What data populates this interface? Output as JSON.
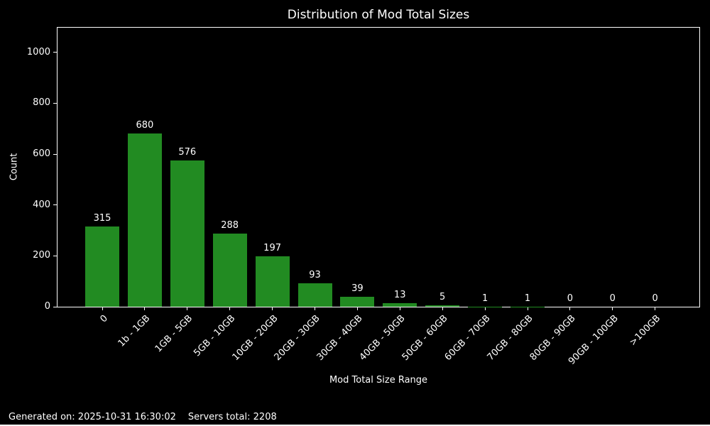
{
  "chart_data": {
    "type": "bar",
    "title": "Distribution of Mod Total Sizes",
    "xlabel": "Mod Total Size Range",
    "ylabel": "Count",
    "categories": [
      "0",
      "1b - 1GB",
      "1GB - 5GB",
      "5GB - 10GB",
      "10GB - 20GB",
      "20GB - 30GB",
      "30GB - 40GB",
      "40GB - 50GB",
      "50GB - 60GB",
      "60GB - 70GB",
      "70GB - 80GB",
      "80GB - 90GB",
      "90GB - 100GB",
      ">100GB"
    ],
    "values": [
      315,
      680,
      576,
      288,
      197,
      93,
      39,
      13,
      5,
      1,
      1,
      0,
      0,
      0
    ],
    "yticks": [
      0,
      200,
      400,
      600,
      800,
      1000
    ],
    "ylim": [
      0,
      1097
    ],
    "grid": false,
    "legend": null,
    "x_tick_label_rotation_deg": 45,
    "bar_color": "#228B22",
    "background_color": "#000000",
    "text_color": "#ffffff"
  },
  "footer": {
    "generated": "Generated on: 2025-10-31 16:30:02",
    "servers_total": "Servers total: 2208"
  }
}
